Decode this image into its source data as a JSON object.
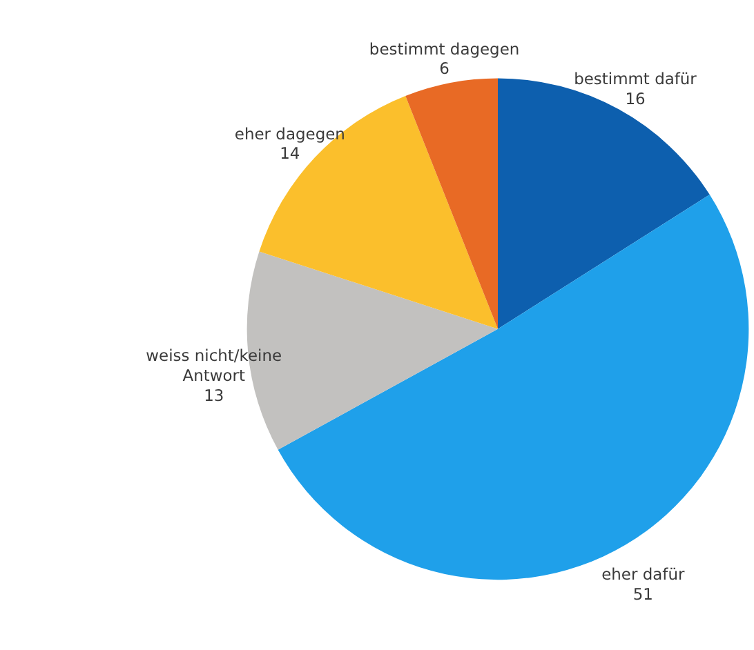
{
  "chart_data": {
    "type": "pie",
    "categories": [
      "bestimmt dafür",
      "eher dafür",
      "weiss nicht/keine Antwort",
      "eher dagegen",
      "bestimmt dagegen"
    ],
    "values": [
      16,
      51,
      13,
      14,
      6
    ],
    "colors": [
      "#0d5fae",
      "#1fa0ea",
      "#c2c1bf",
      "#fbbf2c",
      "#e86a25"
    ],
    "data_labels": true
  }
}
